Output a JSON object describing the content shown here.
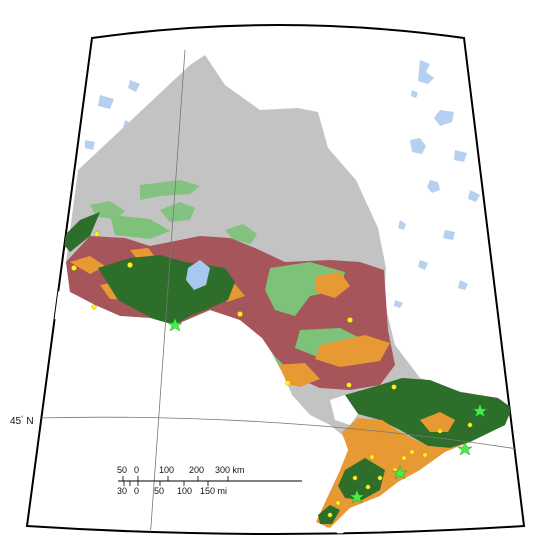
{
  "map": {
    "graticule_label": "45° N",
    "graticule_label_deg": "45",
    "graticule_label_dir": "N",
    "colors": {
      "background": "#ffffff",
      "unmapped_north": "#c3c3c3",
      "dark_green": "#2d6e2b",
      "light_green": "#7ec27a",
      "orange": "#e79a34",
      "maroon": "#a6555a",
      "water": "#a8c8ef",
      "city_dot": "#ffee22",
      "star": "#44ee44"
    },
    "scale_bar": {
      "km_labels": [
        "50",
        "0",
        "100",
        "200",
        "300 km"
      ],
      "mi_labels": [
        "30",
        "0",
        "50",
        "100",
        "150 mi"
      ]
    }
  }
}
